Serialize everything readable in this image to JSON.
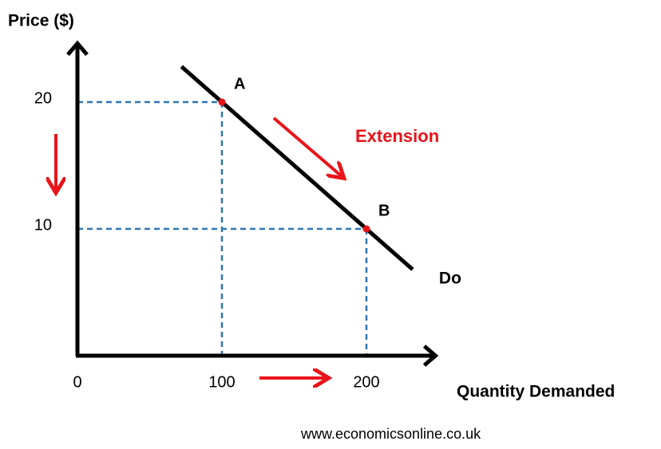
{
  "chart_data": {
    "type": "line",
    "x_label": "Quantity Demanded",
    "y_label": "Price ($)",
    "xlim": [
      0,
      250
    ],
    "ylim": [
      0,
      25
    ],
    "xticks": [
      0,
      100,
      200
    ],
    "yticks": [
      10,
      20
    ],
    "series": [
      {
        "name": "Do",
        "color": "#000000",
        "x": [
          72,
          232
        ],
        "values": [
          22.8,
          6.8
        ]
      }
    ],
    "points": {
      "labels": [
        "A",
        "B"
      ],
      "x": [
        100,
        200
      ],
      "values": [
        20,
        10
      ],
      "color": "#e8141a",
      "guide_color": "#2e75b6"
    },
    "annotation": "Extension",
    "source": "www.economicsonline.co.uk"
  }
}
